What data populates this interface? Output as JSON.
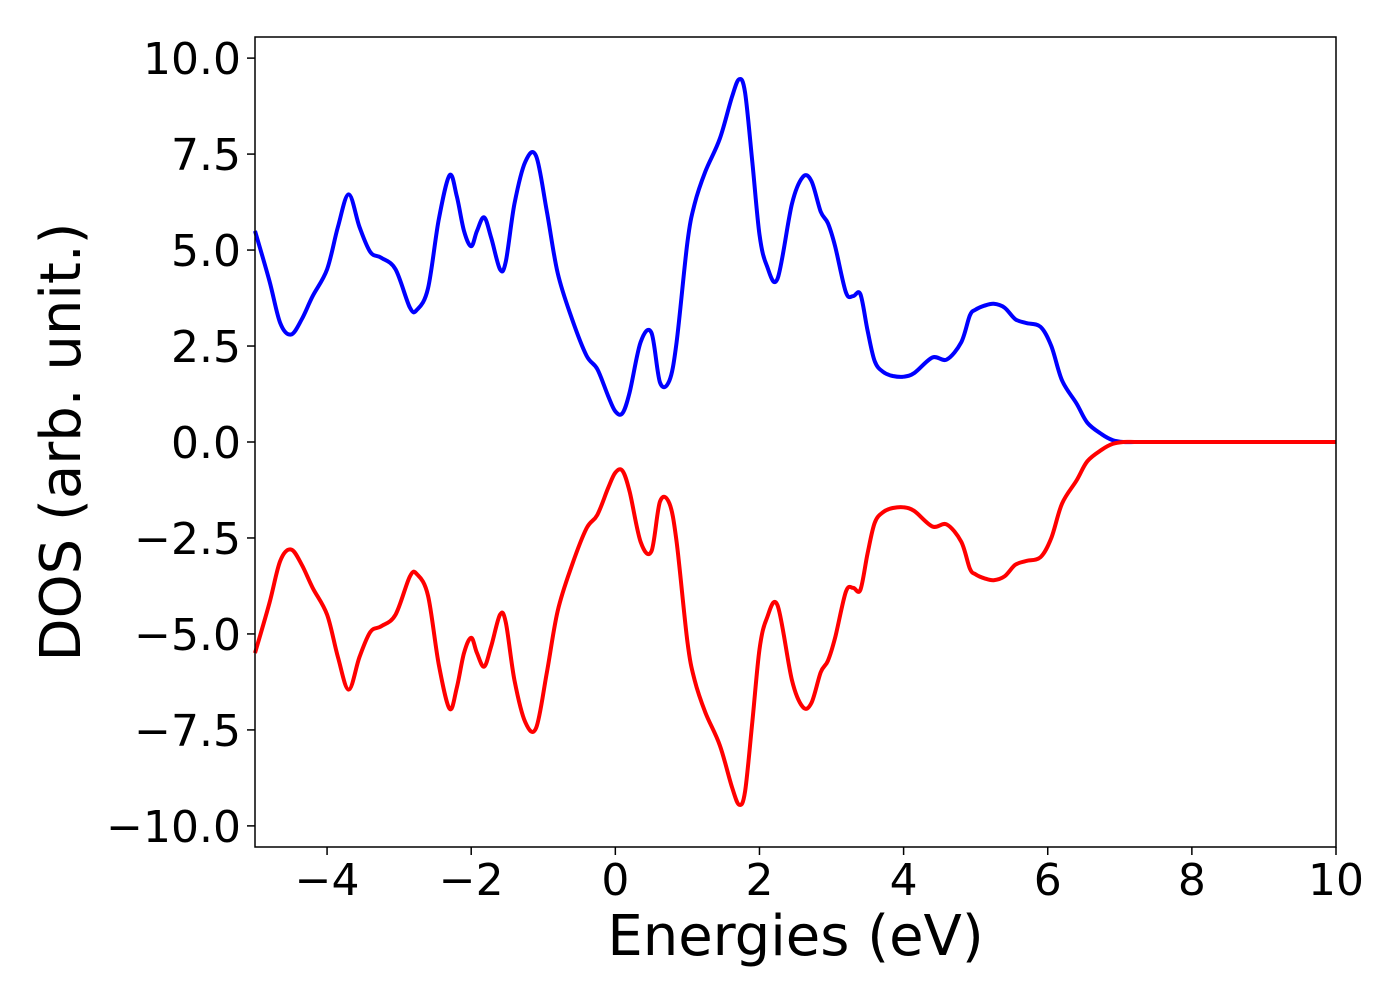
{
  "chart_data": {
    "type": "line",
    "title": "",
    "xlabel": "Energies (eV)",
    "ylabel": "DOS (arb. unit.)",
    "xlim": [
      -5,
      10
    ],
    "ylim": [
      -10.55,
      10.55
    ],
    "grid": false,
    "legend": "none",
    "x_ticks": [
      -4,
      -2,
      0,
      2,
      4,
      6,
      8,
      10
    ],
    "x_tick_labels": [
      "−4",
      "−2",
      "0",
      "2",
      "4",
      "6",
      "8",
      "10"
    ],
    "y_ticks": [
      10.0,
      7.5,
      5.0,
      2.5,
      0.0,
      -2.5,
      -5.0,
      -7.5,
      -10.0
    ],
    "y_tick_labels": [
      "10.0",
      "7.5",
      "5.0",
      "2.5",
      "0.0",
      "−2.5",
      "−5.0",
      "−7.5",
      "−10.0"
    ],
    "series": [
      {
        "color": "#0000ff",
        "mirror": false,
        "x": [
          -5.0,
          -4.8,
          -4.65,
          -4.5,
          -4.35,
          -4.2,
          -4.0,
          -3.85,
          -3.7,
          -3.55,
          -3.4,
          -3.25,
          -3.05,
          -2.85,
          -2.75,
          -2.6,
          -2.45,
          -2.3,
          -2.2,
          -2.1,
          -2.0,
          -1.92,
          -1.82,
          -1.72,
          -1.6,
          -1.52,
          -1.4,
          -1.25,
          -1.1,
          -0.95,
          -0.8,
          -0.6,
          -0.4,
          -0.25,
          -0.1,
          0.0,
          0.1,
          0.2,
          0.35,
          0.5,
          0.62,
          0.75,
          0.85,
          1.0,
          1.1,
          1.25,
          1.45,
          1.62,
          1.72,
          1.8,
          1.9,
          2.0,
          2.1,
          2.25,
          2.45,
          2.6,
          2.72,
          2.85,
          2.95,
          3.05,
          3.2,
          3.3,
          3.4,
          3.5,
          3.6,
          3.72,
          3.85,
          4.0,
          4.15,
          4.4,
          4.6,
          4.8,
          4.92,
          5.0,
          5.12,
          5.25,
          5.4,
          5.55,
          5.7,
          5.9,
          6.05,
          6.2,
          6.4,
          6.55,
          6.75,
          6.9,
          7.05,
          7.2,
          7.35,
          7.55,
          7.75,
          7.9,
          8.0,
          8.2,
          8.5,
          9.0,
          9.5,
          10.0
        ],
        "y": [
          5.5,
          4.2,
          3.1,
          2.8,
          3.2,
          3.8,
          4.5,
          5.6,
          6.45,
          5.6,
          4.95,
          4.8,
          4.5,
          3.5,
          3.45,
          4.0,
          5.8,
          6.95,
          6.4,
          5.5,
          5.1,
          5.5,
          5.85,
          5.3,
          4.5,
          4.7,
          6.2,
          7.3,
          7.45,
          6.0,
          4.4,
          3.2,
          2.25,
          1.9,
          1.2,
          0.8,
          0.75,
          1.3,
          2.6,
          2.85,
          1.55,
          1.6,
          2.6,
          5.2,
          6.2,
          7.05,
          7.9,
          9.0,
          9.45,
          9.1,
          7.3,
          5.4,
          4.6,
          4.25,
          6.2,
          6.9,
          6.8,
          6.0,
          5.7,
          5.1,
          3.9,
          3.8,
          3.85,
          2.9,
          2.1,
          1.82,
          1.72,
          1.7,
          1.8,
          2.2,
          2.15,
          2.6,
          3.3,
          3.45,
          3.55,
          3.6,
          3.5,
          3.2,
          3.1,
          3.0,
          2.5,
          1.6,
          1.0,
          0.5,
          0.2,
          0.05,
          0.0,
          0.0,
          0.0,
          0.0,
          0.0,
          0.0,
          0.0,
          0.0,
          0.0,
          0.0,
          0.0,
          0.0
        ]
      },
      {
        "color": "#ff0000",
        "mirror": true
      }
    ]
  }
}
